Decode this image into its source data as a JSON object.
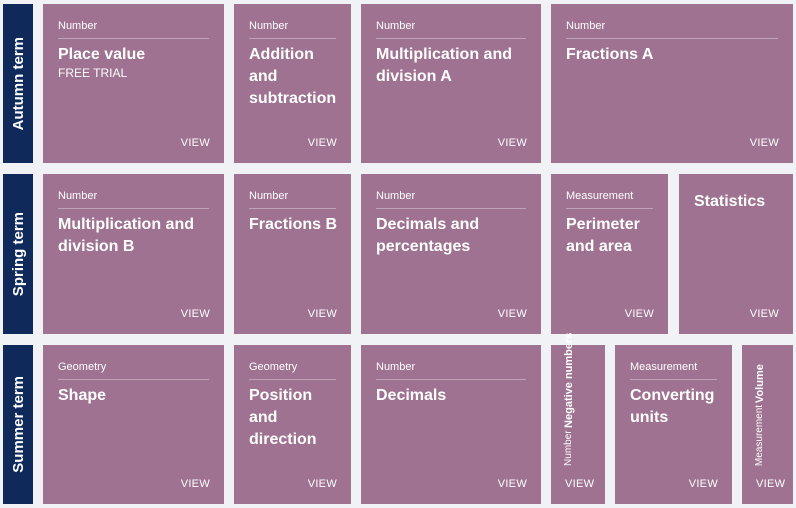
{
  "colors": {
    "term_label": "#0f2a5a",
    "card": "#9e7290",
    "background": "#f1f2f6",
    "text": "#ffffff"
  },
  "view_label": "VIEW",
  "terms": {
    "autumn": "Autumn term",
    "spring": "Spring term",
    "summer": "Summer term"
  },
  "autumn": [
    {
      "category": "Number",
      "title": "Place value",
      "subtitle": "FREE TRIAL"
    },
    {
      "category": "Number",
      "title": "Addition and subtraction"
    },
    {
      "category": "Number",
      "title": "Multiplication and division A"
    },
    {
      "category": "Number",
      "title": "Fractions A"
    }
  ],
  "spring": [
    {
      "category": "Number",
      "title": "Multiplication and division B"
    },
    {
      "category": "Number",
      "title": "Fractions B"
    },
    {
      "category": "Number",
      "title": "Decimals and percentages"
    },
    {
      "category": "Measurement",
      "title": "Perimeter and area"
    },
    {
      "title": "Statistics"
    }
  ],
  "summer": [
    {
      "category": "Geometry",
      "title": "Shape"
    },
    {
      "category": "Geometry",
      "title": "Position and direction"
    },
    {
      "category": "Number",
      "title": "Decimals"
    },
    {
      "category": "Number",
      "title": "Negative numbers"
    },
    {
      "category": "Measurement",
      "title": "Converting units"
    },
    {
      "category": "Measurement",
      "title": "Volume"
    }
  ]
}
